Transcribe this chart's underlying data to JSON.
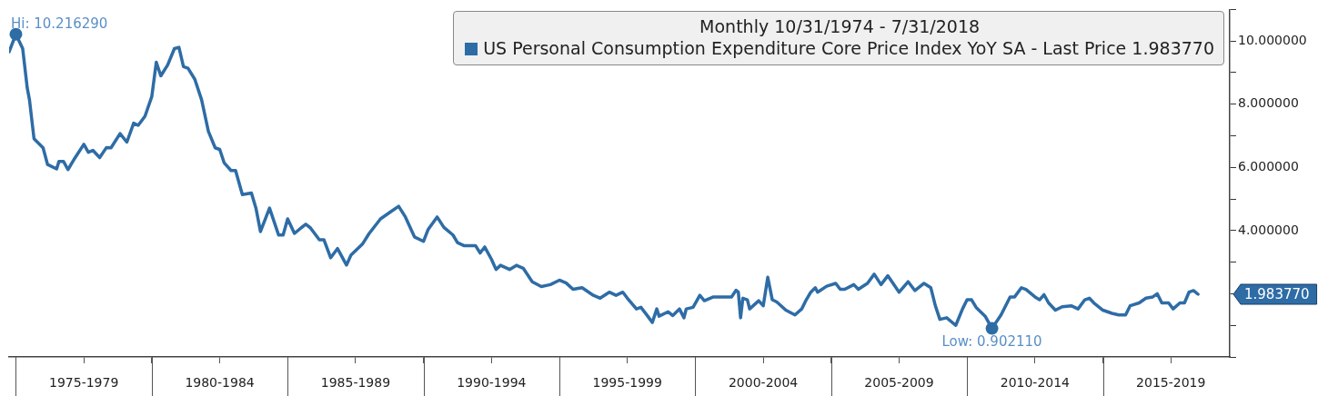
{
  "chart_data": {
    "type": "line",
    "legend_title": "Monthly 10/31/1974 - 7/31/2018",
    "legend": "top right",
    "marker": "none",
    "line_style": "solid",
    "grid": false,
    "xlim": [
      "1974-10",
      "2019-09"
    ],
    "xticks": [
      {
        "value": "1975-01",
        "label": null
      },
      {
        "value": "1977-07",
        "label": "1975-1979"
      },
      {
        "value": "1980-01",
        "label": null
      },
      {
        "value": "1982-07",
        "label": "1980-1984"
      },
      {
        "value": "1985-01",
        "label": null
      },
      {
        "value": "1987-07",
        "label": "1985-1989"
      },
      {
        "value": "1990-01",
        "label": null
      },
      {
        "value": "1992-07",
        "label": "1990-1994"
      },
      {
        "value": "1995-01",
        "label": null
      },
      {
        "value": "1997-07",
        "label": "1995-1999"
      },
      {
        "value": "2000-01",
        "label": null
      },
      {
        "value": "2002-07",
        "label": "2000-2004"
      },
      {
        "value": "2005-01",
        "label": null
      },
      {
        "value": "2007-07",
        "label": "2005-2009"
      },
      {
        "value": "2010-01",
        "label": null
      },
      {
        "value": "2012-07",
        "label": "2010-2014"
      },
      {
        "value": "2015-01",
        "label": null
      },
      {
        "value": "2017-07",
        "label": "2015-2019"
      }
    ],
    "ylim": [
      0,
      11
    ],
    "yticks": [
      {
        "value": 0,
        "label": null
      },
      {
        "value": 1,
        "label": null
      },
      {
        "value": 2,
        "label": null
      },
      {
        "value": 3,
        "label": null
      },
      {
        "value": 4,
        "label": "4.000000"
      },
      {
        "value": 5,
        "label": null
      },
      {
        "value": 6,
        "label": "6.000000"
      },
      {
        "value": 7,
        "label": null
      },
      {
        "value": 8,
        "label": "8.000000"
      },
      {
        "value": 9,
        "label": null
      },
      {
        "value": 10,
        "label": "10.000000"
      },
      {
        "value": 11,
        "label": null
      }
    ],
    "annotations": [
      {
        "text": "Hi: 10.216290",
        "x": "1975-01",
        "y": 10.21629
      },
      {
        "text": "Low: 0.902110",
        "x": "2010-12",
        "y": 0.90211
      },
      "1.983770"
    ],
    "series": [
      {
        "name": "US Personal Consumption Expenditure Core Price Index YoY SA - Last Price 1.983770",
        "color": "#2e6ca6",
        "x": [
          "1974-10",
          "1975-01",
          "1975-04",
          "1975-06",
          "1975-07",
          "1975-09",
          "1976-01",
          "1976-03",
          "1976-07",
          "1976-08",
          "1976-10",
          "1976-12",
          "1977-03",
          "1977-07",
          "1977-09",
          "1977-11",
          "1978-02",
          "1978-05",
          "1978-07",
          "1978-11",
          "1979-02",
          "1979-05",
          "1979-07",
          "1979-10",
          "1980-01",
          "1980-03",
          "1980-05",
          "1980-08",
          "1980-11",
          "1981-01",
          "1981-03",
          "1981-05",
          "1981-08",
          "1981-11",
          "1982-02",
          "1982-05",
          "1982-07",
          "1982-09",
          "1982-12",
          "1983-02",
          "1983-05",
          "1983-09",
          "1983-11",
          "1984-01",
          "1984-05",
          "1984-09",
          "1984-11",
          "1985-01",
          "1985-04",
          "1985-07",
          "1985-09",
          "1985-11",
          "1986-03",
          "1986-05",
          "1986-08",
          "1986-11",
          "1987-03",
          "1987-05",
          "1987-10",
          "1988-01",
          "1988-06",
          "1988-10",
          "1989-02",
          "1989-05",
          "1989-09",
          "1990-01",
          "1990-03",
          "1990-07",
          "1990-10",
          "1991-02",
          "1991-04",
          "1991-07",
          "1991-12",
          "1992-02",
          "1992-04",
          "1992-07",
          "1992-09",
          "1992-11",
          "1993-03",
          "1993-06",
          "1993-09",
          "1994-01",
          "1994-05",
          "1994-09",
          "1995-01",
          "1995-04",
          "1995-07",
          "1995-11",
          "1996-04",
          "1996-07",
          "1996-11",
          "1997-02",
          "1997-05",
          "1997-07",
          "1997-11",
          "1998-01",
          "1998-04",
          "1998-06",
          "1998-08",
          "1998-09",
          "1999-01",
          "1999-03",
          "1999-06",
          "1999-08",
          "1999-09",
          "1999-12",
          "2000-03",
          "2000-05",
          "2000-09",
          "2001-01",
          "2001-05",
          "2001-07",
          "2001-08",
          "2001-09",
          "2001-10",
          "2001-12",
          "2002-01",
          "2002-05",
          "2002-07",
          "2002-09",
          "2002-11",
          "2003-01",
          "2003-05",
          "2003-09",
          "2003-12",
          "2004-02",
          "2004-04",
          "2004-06",
          "2004-07",
          "2004-11",
          "2005-03",
          "2005-05",
          "2005-07",
          "2005-11",
          "2006-01",
          "2006-05",
          "2006-08",
          "2006-11",
          "2007-02",
          "2007-07",
          "2007-11",
          "2008-02",
          "2008-06",
          "2008-09",
          "2008-11",
          "2009-01",
          "2009-04",
          "2009-08",
          "2009-11",
          "2010-01",
          "2010-03",
          "2010-05",
          "2010-09",
          "2010-12",
          "2011-04",
          "2011-08",
          "2011-10",
          "2012-01",
          "2012-03",
          "2012-07",
          "2012-09",
          "2012-11",
          "2013-01",
          "2013-04",
          "2013-07",
          "2013-11",
          "2014-02",
          "2014-05",
          "2014-07",
          "2014-09",
          "2015-01",
          "2015-05",
          "2015-08",
          "2015-11",
          "2016-01",
          "2016-05",
          "2016-08",
          "2016-11",
          "2017-01",
          "2017-03",
          "2017-06",
          "2017-08",
          "2017-11",
          "2018-01",
          "2018-03",
          "2018-05",
          "2018-07"
        ],
        "values": [
          9.66,
          10.21629,
          9.76,
          8.52,
          8.14,
          6.91,
          6.62,
          6.09,
          5.95,
          6.19,
          6.19,
          5.93,
          6.29,
          6.73,
          6.48,
          6.54,
          6.31,
          6.63,
          6.62,
          7.07,
          6.8,
          7.4,
          7.33,
          7.62,
          8.24,
          9.33,
          8.9,
          9.24,
          9.76,
          9.8,
          9.19,
          9.14,
          8.79,
          8.14,
          7.14,
          6.62,
          6.57,
          6.14,
          5.9,
          5.9,
          5.14,
          5.19,
          4.71,
          3.97,
          4.71,
          3.86,
          3.86,
          4.37,
          3.91,
          4.09,
          4.2,
          4.09,
          3.71,
          3.71,
          3.14,
          3.43,
          2.91,
          3.23,
          3.57,
          3.91,
          4.37,
          4.57,
          4.77,
          4.43,
          3.8,
          3.66,
          4.03,
          4.43,
          4.1,
          3.86,
          3.62,
          3.52,
          3.52,
          3.29,
          3.48,
          3.09,
          2.77,
          2.9,
          2.77,
          2.9,
          2.81,
          2.38,
          2.23,
          2.29,
          2.43,
          2.34,
          2.14,
          2.19,
          1.95,
          1.86,
          2.05,
          1.95,
          2.05,
          1.86,
          1.52,
          1.57,
          1.29,
          1.09,
          1.52,
          1.29,
          1.43,
          1.31,
          1.52,
          1.24,
          1.52,
          1.57,
          1.95,
          1.78,
          1.9,
          1.9,
          1.9,
          2.11,
          2.05,
          1.24,
          1.86,
          1.81,
          1.52,
          1.78,
          1.62,
          2.52,
          1.81,
          1.74,
          1.48,
          1.33,
          1.52,
          1.81,
          2.05,
          2.19,
          2.05,
          2.24,
          2.33,
          2.14,
          2.14,
          2.29,
          2.14,
          2.33,
          2.62,
          2.29,
          2.57,
          2.05,
          2.38,
          2.1,
          2.33,
          2.19,
          1.62,
          1.19,
          1.24,
          1.0,
          1.52,
          1.81,
          1.81,
          1.57,
          1.29,
          0.90211,
          1.33,
          1.9,
          1.9,
          2.19,
          2.14,
          1.9,
          1.81,
          1.97,
          1.71,
          1.48,
          1.59,
          1.62,
          1.52,
          1.81,
          1.86,
          1.71,
          1.48,
          1.38,
          1.33,
          1.33,
          1.62,
          1.71,
          1.86,
          1.9,
          2.0,
          1.71,
          1.71,
          1.52,
          1.71,
          1.71,
          2.05,
          2.1,
          1.98377
        ]
      }
    ]
  }
}
